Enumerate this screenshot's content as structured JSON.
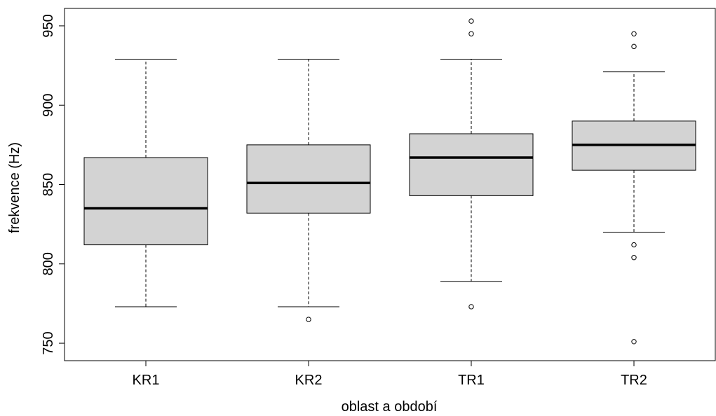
{
  "chart_data": {
    "type": "boxplot",
    "xlabel": "oblast a období",
    "ylabel": "frekvence (Hz)",
    "ylim": [
      739,
      961
    ],
    "yticks": [
      750,
      800,
      850,
      900,
      950
    ],
    "grid": false,
    "colors": {
      "box_fill": "#d3d3d3",
      "stroke": "#000000"
    },
    "categories": [
      "KR1",
      "KR2",
      "TR1",
      "TR2"
    ],
    "boxes": [
      {
        "category": "KR1",
        "whisker_low": 773,
        "q1": 812,
        "median": 835,
        "q3": 867,
        "whisker_high": 929,
        "outliers": []
      },
      {
        "category": "KR2",
        "whisker_low": 773,
        "q1": 832,
        "median": 851,
        "q3": 875,
        "whisker_high": 929,
        "outliers": [
          765
        ]
      },
      {
        "category": "TR1",
        "whisker_low": 789,
        "q1": 843,
        "median": 867,
        "q3": 882,
        "whisker_high": 929,
        "outliers": [
          773,
          945,
          953
        ]
      },
      {
        "category": "TR2",
        "whisker_low": 820,
        "q1": 859,
        "median": 875,
        "q3": 890,
        "whisker_high": 921,
        "outliers": [
          751,
          804,
          812,
          937,
          945
        ]
      }
    ]
  }
}
